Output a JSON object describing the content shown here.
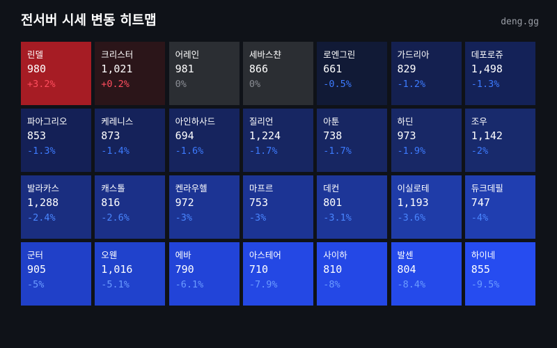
{
  "header": {
    "title": "전서버 시세 변동 히트맵",
    "brand": "deng.gg"
  },
  "cells": [
    {
      "name": "린델",
      "price": "980",
      "change": "+3.2%",
      "bg": "#a61c24",
      "fg": "#ff4d5e"
    },
    {
      "name": "크리스터",
      "price": "1,021",
      "change": "+0.2%",
      "bg": "#2b1519",
      "fg": "#ff4d5e"
    },
    {
      "name": "어레인",
      "price": "981",
      "change": "0%",
      "bg": "#2b2e33",
      "fg": "#8a8d94"
    },
    {
      "name": "세바스챤",
      "price": "866",
      "change": "0%",
      "bg": "#2b2e33",
      "fg": "#8a8d94"
    },
    {
      "name": "로엔그린",
      "price": "661",
      "change": "-0.5%",
      "bg": "#111a36",
      "fg": "#3d7bff"
    },
    {
      "name": "가드리아",
      "price": "829",
      "change": "-1.2%",
      "bg": "#142050",
      "fg": "#3d7bff"
    },
    {
      "name": "데포로쥬",
      "price": "1,498",
      "change": "-1.3%",
      "bg": "#142258",
      "fg": "#3d7bff"
    },
    {
      "name": "파아그리오",
      "price": "853",
      "change": "-1.3%",
      "bg": "#142056",
      "fg": "#3d7bff"
    },
    {
      "name": "케레니스",
      "price": "873",
      "change": "-1.4%",
      "bg": "#15225a",
      "fg": "#3d7bff"
    },
    {
      "name": "아인하사드",
      "price": "694",
      "change": "-1.6%",
      "bg": "#16245e",
      "fg": "#3d7bff"
    },
    {
      "name": "질리언",
      "price": "1,224",
      "change": "-1.7%",
      "bg": "#172662",
      "fg": "#3d7bff"
    },
    {
      "name": "아툰",
      "price": "738",
      "change": "-1.7%",
      "bg": "#172662",
      "fg": "#3d7bff"
    },
    {
      "name": "하딘",
      "price": "973",
      "change": "-1.9%",
      "bg": "#182866",
      "fg": "#3d7bff"
    },
    {
      "name": "조우",
      "price": "1,142",
      "change": "-2%",
      "bg": "#182a6c",
      "fg": "#3d7bff"
    },
    {
      "name": "발라카스",
      "price": "1,288",
      "change": "-2.4%",
      "bg": "#1a2e80",
      "fg": "#4a86ff"
    },
    {
      "name": "캐스톨",
      "price": "816",
      "change": "-2.6%",
      "bg": "#1b3088",
      "fg": "#4a86ff"
    },
    {
      "name": "켄라우헬",
      "price": "972",
      "change": "-3%",
      "bg": "#1c3494",
      "fg": "#4a86ff"
    },
    {
      "name": "마프르",
      "price": "753",
      "change": "-3%",
      "bg": "#1c3494",
      "fg": "#4a86ff"
    },
    {
      "name": "데컨",
      "price": "801",
      "change": "-3.1%",
      "bg": "#1d3698",
      "fg": "#4a86ff"
    },
    {
      "name": "이실로테",
      "price": "1,193",
      "change": "-3.6%",
      "bg": "#1f3ca8",
      "fg": "#4a86ff"
    },
    {
      "name": "듀크데필",
      "price": "747",
      "change": "-4%",
      "bg": "#203eb0",
      "fg": "#4a86ff"
    },
    {
      "name": "군터",
      "price": "905",
      "change": "-5%",
      "bg": "#2040c8",
      "fg": "#6b9bff"
    },
    {
      "name": "오웬",
      "price": "1,016",
      "change": "-5.1%",
      "bg": "#2042cc",
      "fg": "#6b9bff"
    },
    {
      "name": "에바",
      "price": "790",
      "change": "-6.1%",
      "bg": "#2244d8",
      "fg": "#6b9bff"
    },
    {
      "name": "아스테어",
      "price": "710",
      "change": "-7.9%",
      "bg": "#2448e4",
      "fg": "#6b9bff"
    },
    {
      "name": "사이하",
      "price": "810",
      "change": "-8%",
      "bg": "#2448e6",
      "fg": "#6b9bff"
    },
    {
      "name": "발센",
      "price": "804",
      "change": "-8.4%",
      "bg": "#254aea",
      "fg": "#6b9bff"
    },
    {
      "name": "하이네",
      "price": "855",
      "change": "-9.5%",
      "bg": "#264cf0",
      "fg": "#6b9bff"
    }
  ]
}
